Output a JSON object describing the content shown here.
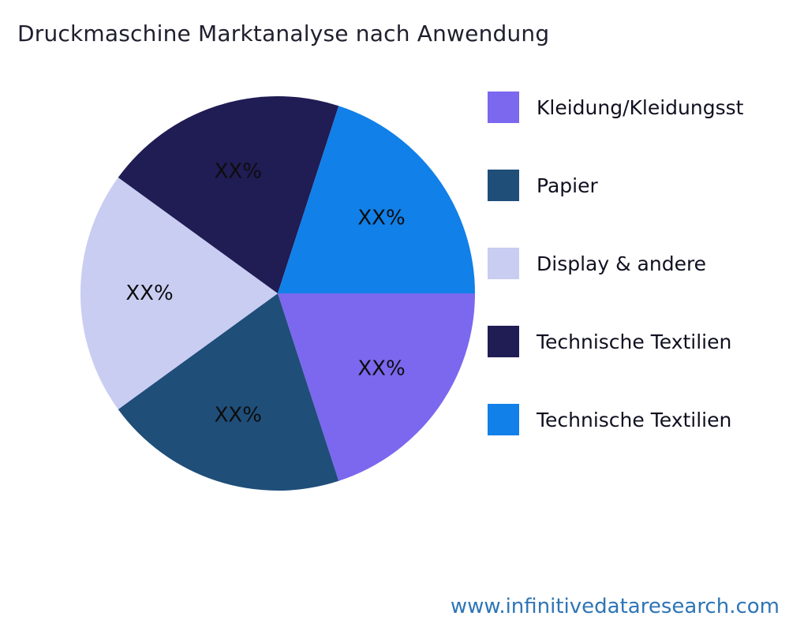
{
  "title": "Druckmaschine Marktanalyse nach Anwendung",
  "watermark": "www.infinitivedataresearch.com",
  "chart_data": {
    "type": "pie",
    "title": "Druckmaschine Marktanalyse nach Anwendung",
    "unit": "percent",
    "value_labels_are_placeholders": true,
    "legend_position": "right",
    "start_angle_deg": 0,
    "direction": "clockwise",
    "slices": [
      {
        "label": "Kleidung/Kleidungsst",
        "value": 20,
        "display_value": "XX%",
        "color": "#7B68EE"
      },
      {
        "label": "Papier",
        "value": 20,
        "display_value": "XX%",
        "color": "#1F4E79"
      },
      {
        "label": "Display & andere",
        "value": 20,
        "display_value": "XX%",
        "color": "#C9CDF2"
      },
      {
        "label": "Technische Textilien",
        "value": 20,
        "display_value": "XX%",
        "color": "#201C54"
      },
      {
        "label": "Technische Textilien",
        "value": 20,
        "display_value": "XX%",
        "color": "#1180E8"
      }
    ]
  }
}
